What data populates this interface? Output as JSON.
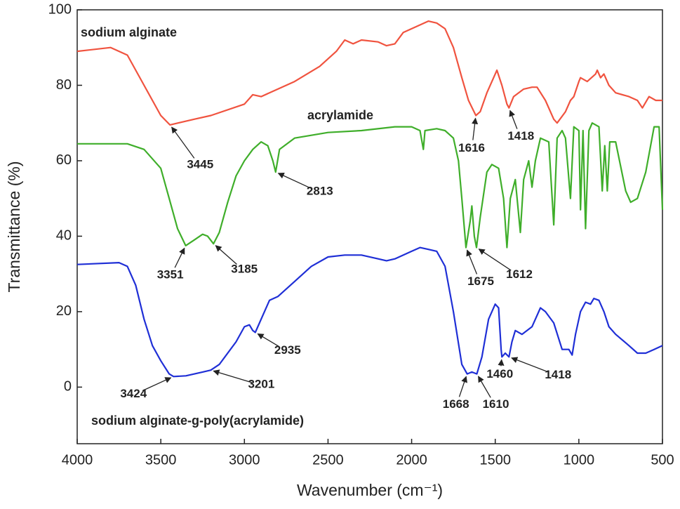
{
  "chart_data": {
    "type": "line",
    "x_label": "Wavenumber (cm⁻¹)",
    "y_label": "Transmittance (%)",
    "xlim": [
      4000,
      500
    ],
    "ylim": [
      -15,
      100
    ],
    "xticks": [
      4000,
      3500,
      3000,
      2500,
      2000,
      1500,
      1000,
      500
    ],
    "yticks": [
      0,
      20,
      40,
      60,
      80,
      100
    ],
    "series": [
      {
        "name": "sodium alginate",
        "color": "#f0533f",
        "x": [
          4000,
          3800,
          3700,
          3600,
          3500,
          3445,
          3300,
          3200,
          3000,
          2950,
          2900,
          2700,
          2550,
          2450,
          2400,
          2350,
          2300,
          2200,
          2150,
          2100,
          2050,
          1950,
          1900,
          1850,
          1800,
          1750,
          1700,
          1660,
          1616,
          1590,
          1550,
          1500,
          1490,
          1460,
          1430,
          1418,
          1390,
          1330,
          1280,
          1250,
          1200,
          1150,
          1130,
          1080,
          1050,
          1030,
          1000,
          990,
          950,
          900,
          890,
          870,
          850,
          820,
          780,
          700,
          650,
          620,
          580,
          540,
          500
        ],
        "values": [
          89,
          90,
          88,
          80,
          72,
          69.5,
          71,
          72,
          75,
          77.5,
          77,
          81,
          85,
          89,
          92,
          91,
          92,
          91.5,
          90.5,
          91,
          94,
          96,
          97,
          96.5,
          95,
          90,
          82,
          76,
          72,
          73,
          78,
          83,
          84,
          80,
          75,
          74,
          77,
          79,
          79.5,
          79.5,
          76,
          71,
          70,
          73,
          76,
          77,
          81,
          82,
          81,
          83,
          84,
          82,
          83,
          80,
          78,
          77,
          76,
          74,
          77,
          76,
          76
        ]
      },
      {
        "name": "acrylamide",
        "color": "#3fae2a",
        "x": [
          4000,
          3700,
          3600,
          3500,
          3450,
          3400,
          3351,
          3300,
          3250,
          3220,
          3185,
          3150,
          3100,
          3050,
          3000,
          2950,
          2900,
          2860,
          2830,
          2813,
          2790,
          2700,
          2500,
          2300,
          2100,
          2000,
          1950,
          1930,
          1920,
          1850,
          1800,
          1750,
          1720,
          1700,
          1675,
          1650,
          1640,
          1625,
          1612,
          1590,
          1550,
          1520,
          1480,
          1450,
          1430,
          1410,
          1380,
          1350,
          1330,
          1300,
          1280,
          1260,
          1230,
          1180,
          1150,
          1130,
          1100,
          1080,
          1050,
          1030,
          1000,
          990,
          975,
          960,
          940,
          920,
          880,
          860,
          845,
          830,
          815,
          780,
          720,
          690,
          650,
          600,
          550,
          520,
          500
        ],
        "values": [
          64.5,
          64.5,
          63,
          58,
          50,
          42,
          37.5,
          39,
          40.5,
          40,
          38,
          41,
          49,
          56,
          60,
          63,
          65,
          64,
          60,
          57,
          63,
          66,
          67.5,
          68,
          69,
          69,
          68,
          63,
          68,
          68.5,
          68,
          66,
          60,
          50,
          37,
          44,
          48,
          40,
          37,
          45,
          57,
          59,
          58,
          50,
          37,
          50,
          55,
          41,
          55,
          60,
          53,
          60,
          66,
          65,
          43,
          66,
          68,
          66,
          50,
          69,
          68,
          47,
          68,
          42,
          68,
          70,
          69,
          52,
          64,
          52,
          65,
          65,
          52,
          49,
          50,
          57,
          69,
          69,
          47
        ]
      },
      {
        "name": "sodium alginate-g-poly(acrylamide)",
        "color": "#1f2fd6",
        "x": [
          4000,
          3750,
          3700,
          3650,
          3600,
          3550,
          3500,
          3450,
          3424,
          3350,
          3250,
          3201,
          3150,
          3050,
          3000,
          2970,
          2950,
          2935,
          2900,
          2850,
          2800,
          2700,
          2600,
          2500,
          2400,
          2300,
          2200,
          2150,
          2100,
          2000,
          1950,
          1900,
          1850,
          1800,
          1750,
          1700,
          1668,
          1640,
          1610,
          1580,
          1540,
          1500,
          1480,
          1465,
          1460,
          1440,
          1418,
          1400,
          1380,
          1340,
          1280,
          1230,
          1200,
          1150,
          1100,
          1060,
          1040,
          1020,
          990,
          960,
          930,
          910,
          880,
          850,
          820,
          780,
          700,
          650,
          600,
          550,
          500
        ],
        "values": [
          32.5,
          33,
          32,
          27,
          18,
          11,
          7,
          3.5,
          2.8,
          3,
          4,
          4.5,
          6,
          12,
          16,
          16.5,
          15,
          14.5,
          18,
          23,
          24,
          28,
          32,
          34.5,
          35,
          35,
          34,
          33.5,
          34,
          36,
          37,
          36.5,
          36,
          32,
          20,
          6,
          3.5,
          4,
          3.5,
          8,
          18,
          22,
          21,
          10,
          8,
          9,
          8,
          12,
          15,
          14,
          16,
          21,
          20,
          17,
          10,
          10,
          8.5,
          14,
          20,
          22.5,
          22,
          23.5,
          23,
          20,
          16,
          14,
          11,
          9,
          9,
          10,
          11
        ]
      }
    ],
    "annotations": [
      {
        "series": 0,
        "x": 3445,
        "y": 69.5
      },
      {
        "series": 0,
        "x": 1616,
        "y": 72
      },
      {
        "series": 0,
        "x": 1418,
        "y": 74
      },
      {
        "series": 1,
        "x": 2813,
        "y": 57
      },
      {
        "series": 1,
        "x": 3351,
        "y": 37.5
      },
      {
        "series": 1,
        "x": 3185,
        "y": 38
      },
      {
        "series": 1,
        "x": 1675,
        "y": 37
      },
      {
        "series": 1,
        "x": 1612,
        "y": 37
      },
      {
        "series": 2,
        "x": 2935,
        "y": 14.5
      },
      {
        "series": 2,
        "x": 3424,
        "y": 2.8
      },
      {
        "series": 2,
        "x": 3201,
        "y": 4.5
      },
      {
        "series": 2,
        "x": 1668,
        "y": 3.5
      },
      {
        "series": 2,
        "x": 1610,
        "y": 3.5
      },
      {
        "series": 2,
        "x": 1460,
        "y": 8
      },
      {
        "series": 2,
        "x": 1418,
        "y": 8
      }
    ]
  }
}
